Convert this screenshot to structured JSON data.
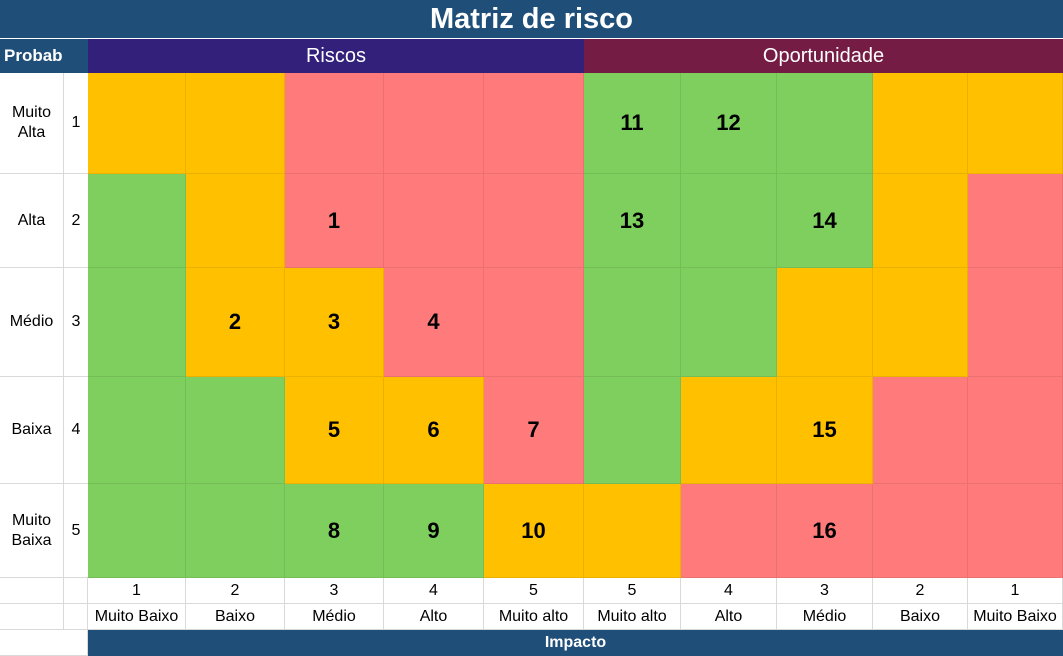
{
  "title": "Matriz de risco",
  "probab_header": "Probab",
  "riscos_header": "Riscos",
  "oportunidade_header": "Oportunidade",
  "impacto_label": "Impacto",
  "colors": {
    "green": "#7fcf5f",
    "yellow": "#ffc000",
    "red": "#ff7b7b"
  },
  "rows": [
    {
      "label": "Muito Alta",
      "num": "1",
      "cells": [
        {
          "c": "y",
          "v": ""
        },
        {
          "c": "y",
          "v": ""
        },
        {
          "c": "r",
          "v": ""
        },
        {
          "c": "r",
          "v": ""
        },
        {
          "c": "r",
          "v": ""
        },
        {
          "c": "g",
          "v": "11"
        },
        {
          "c": "g",
          "v": "12"
        },
        {
          "c": "g",
          "v": ""
        },
        {
          "c": "y",
          "v": ""
        },
        {
          "c": "y",
          "v": ""
        }
      ]
    },
    {
      "label": "Alta",
      "num": "2",
      "cells": [
        {
          "c": "g",
          "v": ""
        },
        {
          "c": "y",
          "v": ""
        },
        {
          "c": "r",
          "v": "1"
        },
        {
          "c": "r",
          "v": ""
        },
        {
          "c": "r",
          "v": ""
        },
        {
          "c": "g",
          "v": "13"
        },
        {
          "c": "g",
          "v": ""
        },
        {
          "c": "g",
          "v": "14"
        },
        {
          "c": "y",
          "v": ""
        },
        {
          "c": "r",
          "v": ""
        }
      ]
    },
    {
      "label": "Médio",
      "num": "3",
      "cells": [
        {
          "c": "g",
          "v": ""
        },
        {
          "c": "y",
          "v": "2"
        },
        {
          "c": "y",
          "v": "3"
        },
        {
          "c": "r",
          "v": "4"
        },
        {
          "c": "r",
          "v": ""
        },
        {
          "c": "g",
          "v": ""
        },
        {
          "c": "g",
          "v": ""
        },
        {
          "c": "y",
          "v": ""
        },
        {
          "c": "y",
          "v": ""
        },
        {
          "c": "r",
          "v": ""
        }
      ]
    },
    {
      "label": "Baixa",
      "num": "4",
      "cells": [
        {
          "c": "g",
          "v": ""
        },
        {
          "c": "g",
          "v": ""
        },
        {
          "c": "y",
          "v": "5"
        },
        {
          "c": "y",
          "v": "6"
        },
        {
          "c": "r",
          "v": "7"
        },
        {
          "c": "g",
          "v": ""
        },
        {
          "c": "y",
          "v": ""
        },
        {
          "c": "y",
          "v": "15"
        },
        {
          "c": "r",
          "v": ""
        },
        {
          "c": "r",
          "v": ""
        }
      ]
    },
    {
      "label": "Muito Baixa",
      "num": "5",
      "cells": [
        {
          "c": "g",
          "v": ""
        },
        {
          "c": "g",
          "v": ""
        },
        {
          "c": "g",
          "v": "8"
        },
        {
          "c": "g",
          "v": "9"
        },
        {
          "c": "y",
          "v": "10"
        },
        {
          "c": "y",
          "v": ""
        },
        {
          "c": "r",
          "v": ""
        },
        {
          "c": "r",
          "v": "16"
        },
        {
          "c": "r",
          "v": ""
        },
        {
          "c": "r",
          "v": ""
        }
      ]
    }
  ],
  "impact_scores": [
    "1",
    "2",
    "3",
    "4",
    "5",
    "5",
    "4",
    "3",
    "2",
    "1"
  ],
  "impact_labels": [
    "Muito Baixo",
    "Baixo",
    "Médio",
    "Alto",
    "Muito alto",
    "Muito alto",
    "Alto",
    "Médio",
    "Baixo",
    "Muito Baixo"
  ]
}
